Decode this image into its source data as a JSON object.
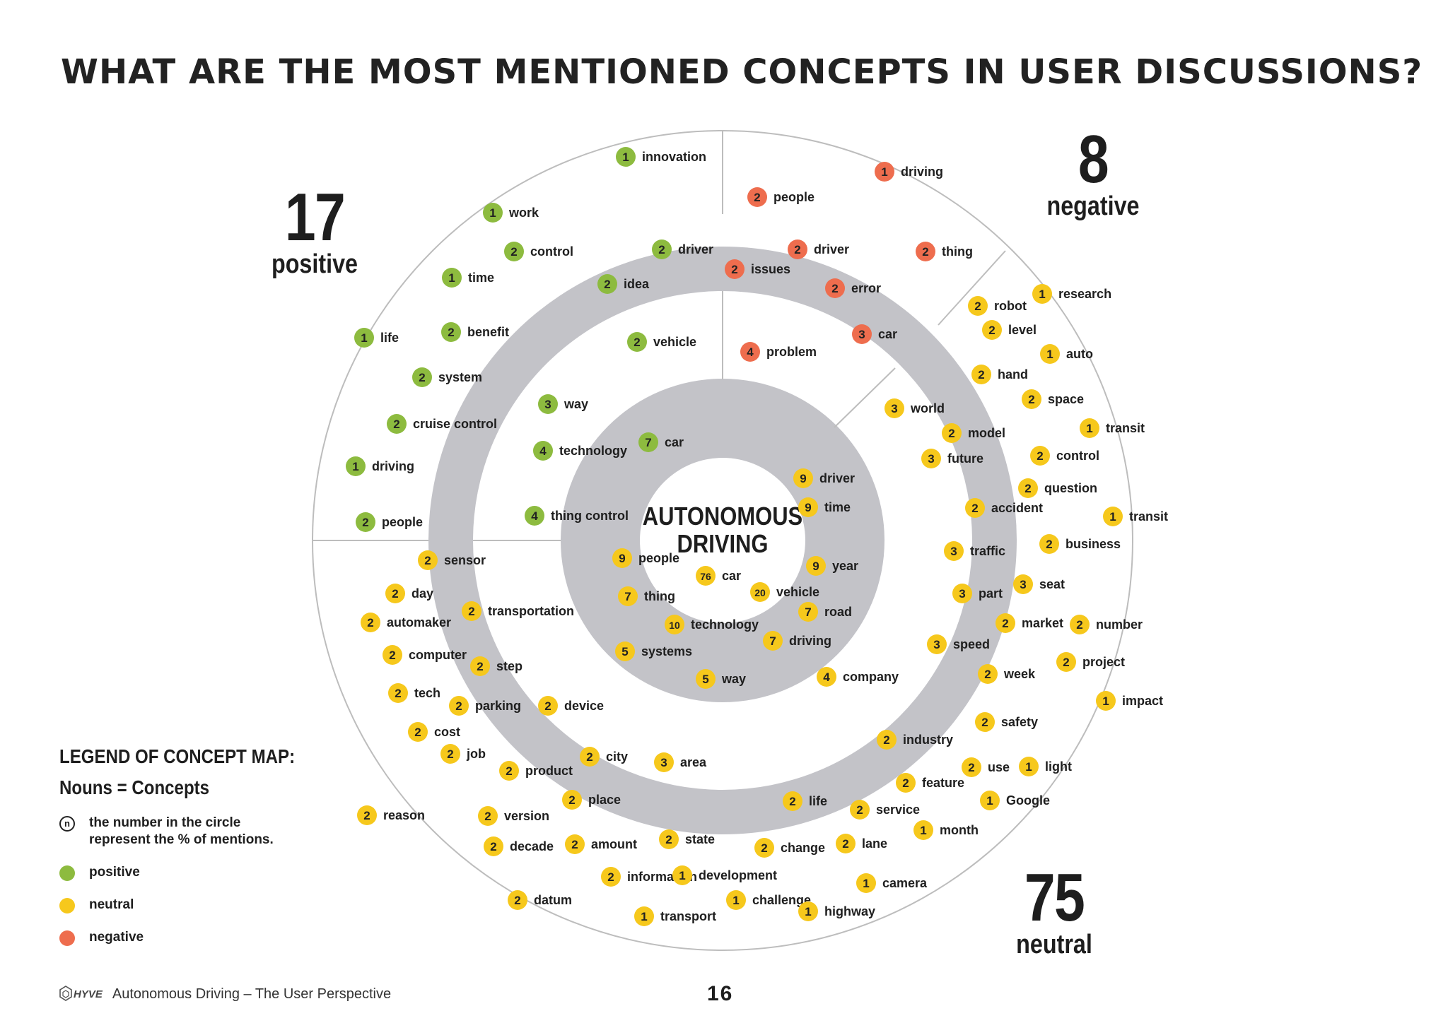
{
  "title": "WHAT ARE THE MOST MENTIONED CONCEPTS IN USER DISCUSSIONS?",
  "center_label": [
    "AUTONOMOUS",
    "DRIVING"
  ],
  "stats": {
    "positive": {
      "number": "17",
      "label": "positive"
    },
    "negative": {
      "number": "8",
      "label": "negative"
    },
    "neutral": {
      "number": "75",
      "label": "neutral"
    }
  },
  "sentiment_colors": {
    "positive": "#8dbb3f",
    "neutral": "#f6c81c",
    "negative": "#ee6d4e"
  },
  "concepts": [
    {
      "n": "1",
      "label": "innovation",
      "s": "positive"
    },
    {
      "n": "1",
      "label": "work",
      "s": "positive"
    },
    {
      "n": "2",
      "label": "control",
      "s": "positive"
    },
    {
      "n": "1",
      "label": "time",
      "s": "positive"
    },
    {
      "n": "2",
      "label": "driver",
      "s": "positive"
    },
    {
      "n": "2",
      "label": "idea",
      "s": "positive"
    },
    {
      "n": "1",
      "label": "life",
      "s": "positive"
    },
    {
      "n": "2",
      "label": "benefit",
      "s": "positive"
    },
    {
      "n": "2",
      "label": "vehicle",
      "s": "positive"
    },
    {
      "n": "2",
      "label": "system",
      "s": "positive"
    },
    {
      "n": "3",
      "label": "way",
      "s": "positive"
    },
    {
      "n": "2",
      "label": "cruise control",
      "s": "positive"
    },
    {
      "n": "4",
      "label": "technology",
      "s": "positive"
    },
    {
      "n": "7",
      "label": "car",
      "s": "positive"
    },
    {
      "n": "1",
      "label": "driving",
      "s": "positive"
    },
    {
      "n": "4",
      "label": "thing control",
      "s": "positive"
    },
    {
      "n": "2",
      "label": "people",
      "s": "positive"
    },
    {
      "n": "1",
      "label": "driving",
      "s": "negative"
    },
    {
      "n": "2",
      "label": "people",
      "s": "negative"
    },
    {
      "n": "2",
      "label": "driver",
      "s": "negative"
    },
    {
      "n": "2",
      "label": "thing",
      "s": "negative"
    },
    {
      "n": "2",
      "label": "issues",
      "s": "negative"
    },
    {
      "n": "2",
      "label": "error",
      "s": "negative"
    },
    {
      "n": "3",
      "label": "car",
      "s": "negative"
    },
    {
      "n": "4",
      "label": "problem",
      "s": "negative"
    },
    {
      "n": "1",
      "label": "research",
      "s": "neutral"
    },
    {
      "n": "2",
      "label": "robot",
      "s": "neutral"
    },
    {
      "n": "2",
      "label": "level",
      "s": "neutral"
    },
    {
      "n": "1",
      "label": "auto",
      "s": "neutral"
    },
    {
      "n": "2",
      "label": "hand",
      "s": "neutral"
    },
    {
      "n": "2",
      "label": "space",
      "s": "neutral"
    },
    {
      "n": "3",
      "label": "world",
      "s": "neutral"
    },
    {
      "n": "1",
      "label": "transit",
      "s": "neutral"
    },
    {
      "n": "2",
      "label": "model",
      "s": "neutral"
    },
    {
      "n": "3",
      "label": "future",
      "s": "neutral"
    },
    {
      "n": "2",
      "label": "control",
      "s": "neutral"
    },
    {
      "n": "2",
      "label": "question",
      "s": "neutral"
    },
    {
      "n": "9",
      "label": "driver",
      "s": "neutral"
    },
    {
      "n": "2",
      "label": "accident",
      "s": "neutral"
    },
    {
      "n": "9",
      "label": "time",
      "s": "neutral"
    },
    {
      "n": "1",
      "label": "transit",
      "s": "neutral"
    },
    {
      "n": "2",
      "label": "business",
      "s": "neutral"
    },
    {
      "n": "3",
      "label": "traffic",
      "s": "neutral"
    },
    {
      "n": "2",
      "label": "sensor",
      "s": "neutral"
    },
    {
      "n": "9",
      "label": "people",
      "s": "neutral"
    },
    {
      "n": "9",
      "label": "year",
      "s": "neutral"
    },
    {
      "n": "3",
      "label": "seat",
      "s": "neutral"
    },
    {
      "n": "76",
      "label": "car",
      "s": "neutral"
    },
    {
      "n": "3",
      "label": "part",
      "s": "neutral"
    },
    {
      "n": "2",
      "label": "day",
      "s": "neutral"
    },
    {
      "n": "7",
      "label": "thing",
      "s": "neutral"
    },
    {
      "n": "20",
      "label": "vehicle",
      "s": "neutral"
    },
    {
      "n": "2",
      "label": "transportation",
      "s": "neutral"
    },
    {
      "n": "7",
      "label": "road",
      "s": "neutral"
    },
    {
      "n": "2",
      "label": "market",
      "s": "neutral"
    },
    {
      "n": "2",
      "label": "number",
      "s": "neutral"
    },
    {
      "n": "2",
      "label": "automaker",
      "s": "neutral"
    },
    {
      "n": "10",
      "label": "technology",
      "s": "neutral"
    },
    {
      "n": "7",
      "label": "driving",
      "s": "neutral"
    },
    {
      "n": "3",
      "label": "speed",
      "s": "neutral"
    },
    {
      "n": "5",
      "label": "systems",
      "s": "neutral"
    },
    {
      "n": "2",
      "label": "computer",
      "s": "neutral"
    },
    {
      "n": "2",
      "label": "project",
      "s": "neutral"
    },
    {
      "n": "2",
      "label": "step",
      "s": "neutral"
    },
    {
      "n": "4",
      "label": "company",
      "s": "neutral"
    },
    {
      "n": "2",
      "label": "week",
      "s": "neutral"
    },
    {
      "n": "5",
      "label": "way",
      "s": "neutral"
    },
    {
      "n": "2",
      "label": "tech",
      "s": "neutral"
    },
    {
      "n": "1",
      "label": "impact",
      "s": "neutral"
    },
    {
      "n": "2",
      "label": "parking",
      "s": "neutral"
    },
    {
      "n": "2",
      "label": "device",
      "s": "neutral"
    },
    {
      "n": "2",
      "label": "safety",
      "s": "neutral"
    },
    {
      "n": "2",
      "label": "cost",
      "s": "neutral"
    },
    {
      "n": "2",
      "label": "industry",
      "s": "neutral"
    },
    {
      "n": "2",
      "label": "job",
      "s": "neutral"
    },
    {
      "n": "2",
      "label": "city",
      "s": "neutral"
    },
    {
      "n": "3",
      "label": "area",
      "s": "neutral"
    },
    {
      "n": "2",
      "label": "use",
      "s": "neutral"
    },
    {
      "n": "1",
      "label": "light",
      "s": "neutral"
    },
    {
      "n": "2",
      "label": "product",
      "s": "neutral"
    },
    {
      "n": "2",
      "label": "feature",
      "s": "neutral"
    },
    {
      "n": "2",
      "label": "place",
      "s": "neutral"
    },
    {
      "n": "2",
      "label": "life",
      "s": "neutral"
    },
    {
      "n": "1",
      "label": "Google",
      "s": "neutral"
    },
    {
      "n": "2",
      "label": "reason",
      "s": "neutral"
    },
    {
      "n": "2",
      "label": "service",
      "s": "neutral"
    },
    {
      "n": "2",
      "label": "version",
      "s": "neutral"
    },
    {
      "n": "1",
      "label": "month",
      "s": "neutral"
    },
    {
      "n": "2",
      "label": "decade",
      "s": "neutral"
    },
    {
      "n": "2",
      "label": "amount",
      "s": "neutral"
    },
    {
      "n": "2",
      "label": "state",
      "s": "neutral"
    },
    {
      "n": "2",
      "label": "change",
      "s": "neutral"
    },
    {
      "n": "2",
      "label": "lane",
      "s": "neutral"
    },
    {
      "n": "2",
      "label": "information",
      "s": "neutral"
    },
    {
      "n": "1",
      "label": "development",
      "s": "neutral"
    },
    {
      "n": "1",
      "label": "camera",
      "s": "neutral"
    },
    {
      "n": "2",
      "label": "datum",
      "s": "neutral"
    },
    {
      "n": "1",
      "label": "challenge",
      "s": "neutral"
    },
    {
      "n": "1",
      "label": "transport",
      "s": "neutral"
    },
    {
      "n": "1",
      "label": "highway",
      "s": "neutral"
    }
  ],
  "legend": {
    "title": "LEGEND OF CONCEPT MAP:",
    "subtitle": "Nouns = Concepts",
    "number_marker": "n",
    "number_text": "the number in the circle\nrepresent the % of mentions.",
    "items": [
      {
        "label": "positive",
        "s": "positive"
      },
      {
        "label": "neutral",
        "s": "neutral"
      },
      {
        "label": "negative",
        "s": "negative"
      }
    ]
  },
  "footer": {
    "brand": "HYVE",
    "text": "Autonomous Driving – The User Perspective",
    "page": "16"
  }
}
